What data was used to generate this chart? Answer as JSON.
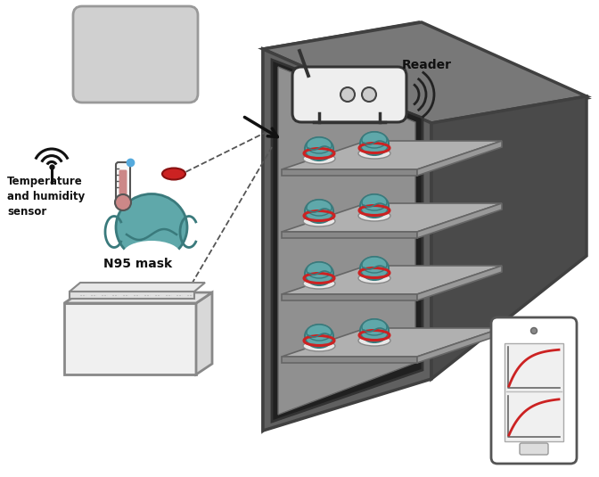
{
  "bg_color": "#ffffff",
  "oven_top": "#787878",
  "oven_left": "#606060",
  "oven_right": "#4a4a4a",
  "oven_frame": "#404040",
  "oven_interior": "#909090",
  "oven_opening": "#232323",
  "shelf_top": "#aaaaaa",
  "shelf_side": "#888888",
  "shelf_front": "#787878",
  "mask_teal": "#5fa8aa",
  "mask_edge": "#3a7a7c",
  "sensor_red": "#cc2222",
  "text_color": "#111111",
  "label_sensor": "Temperature\nand humidity\nsensor",
  "label_mask": "N95 mask",
  "label_reader": "Reader",
  "dashed_color": "#555555",
  "wifi_color": "#111111"
}
